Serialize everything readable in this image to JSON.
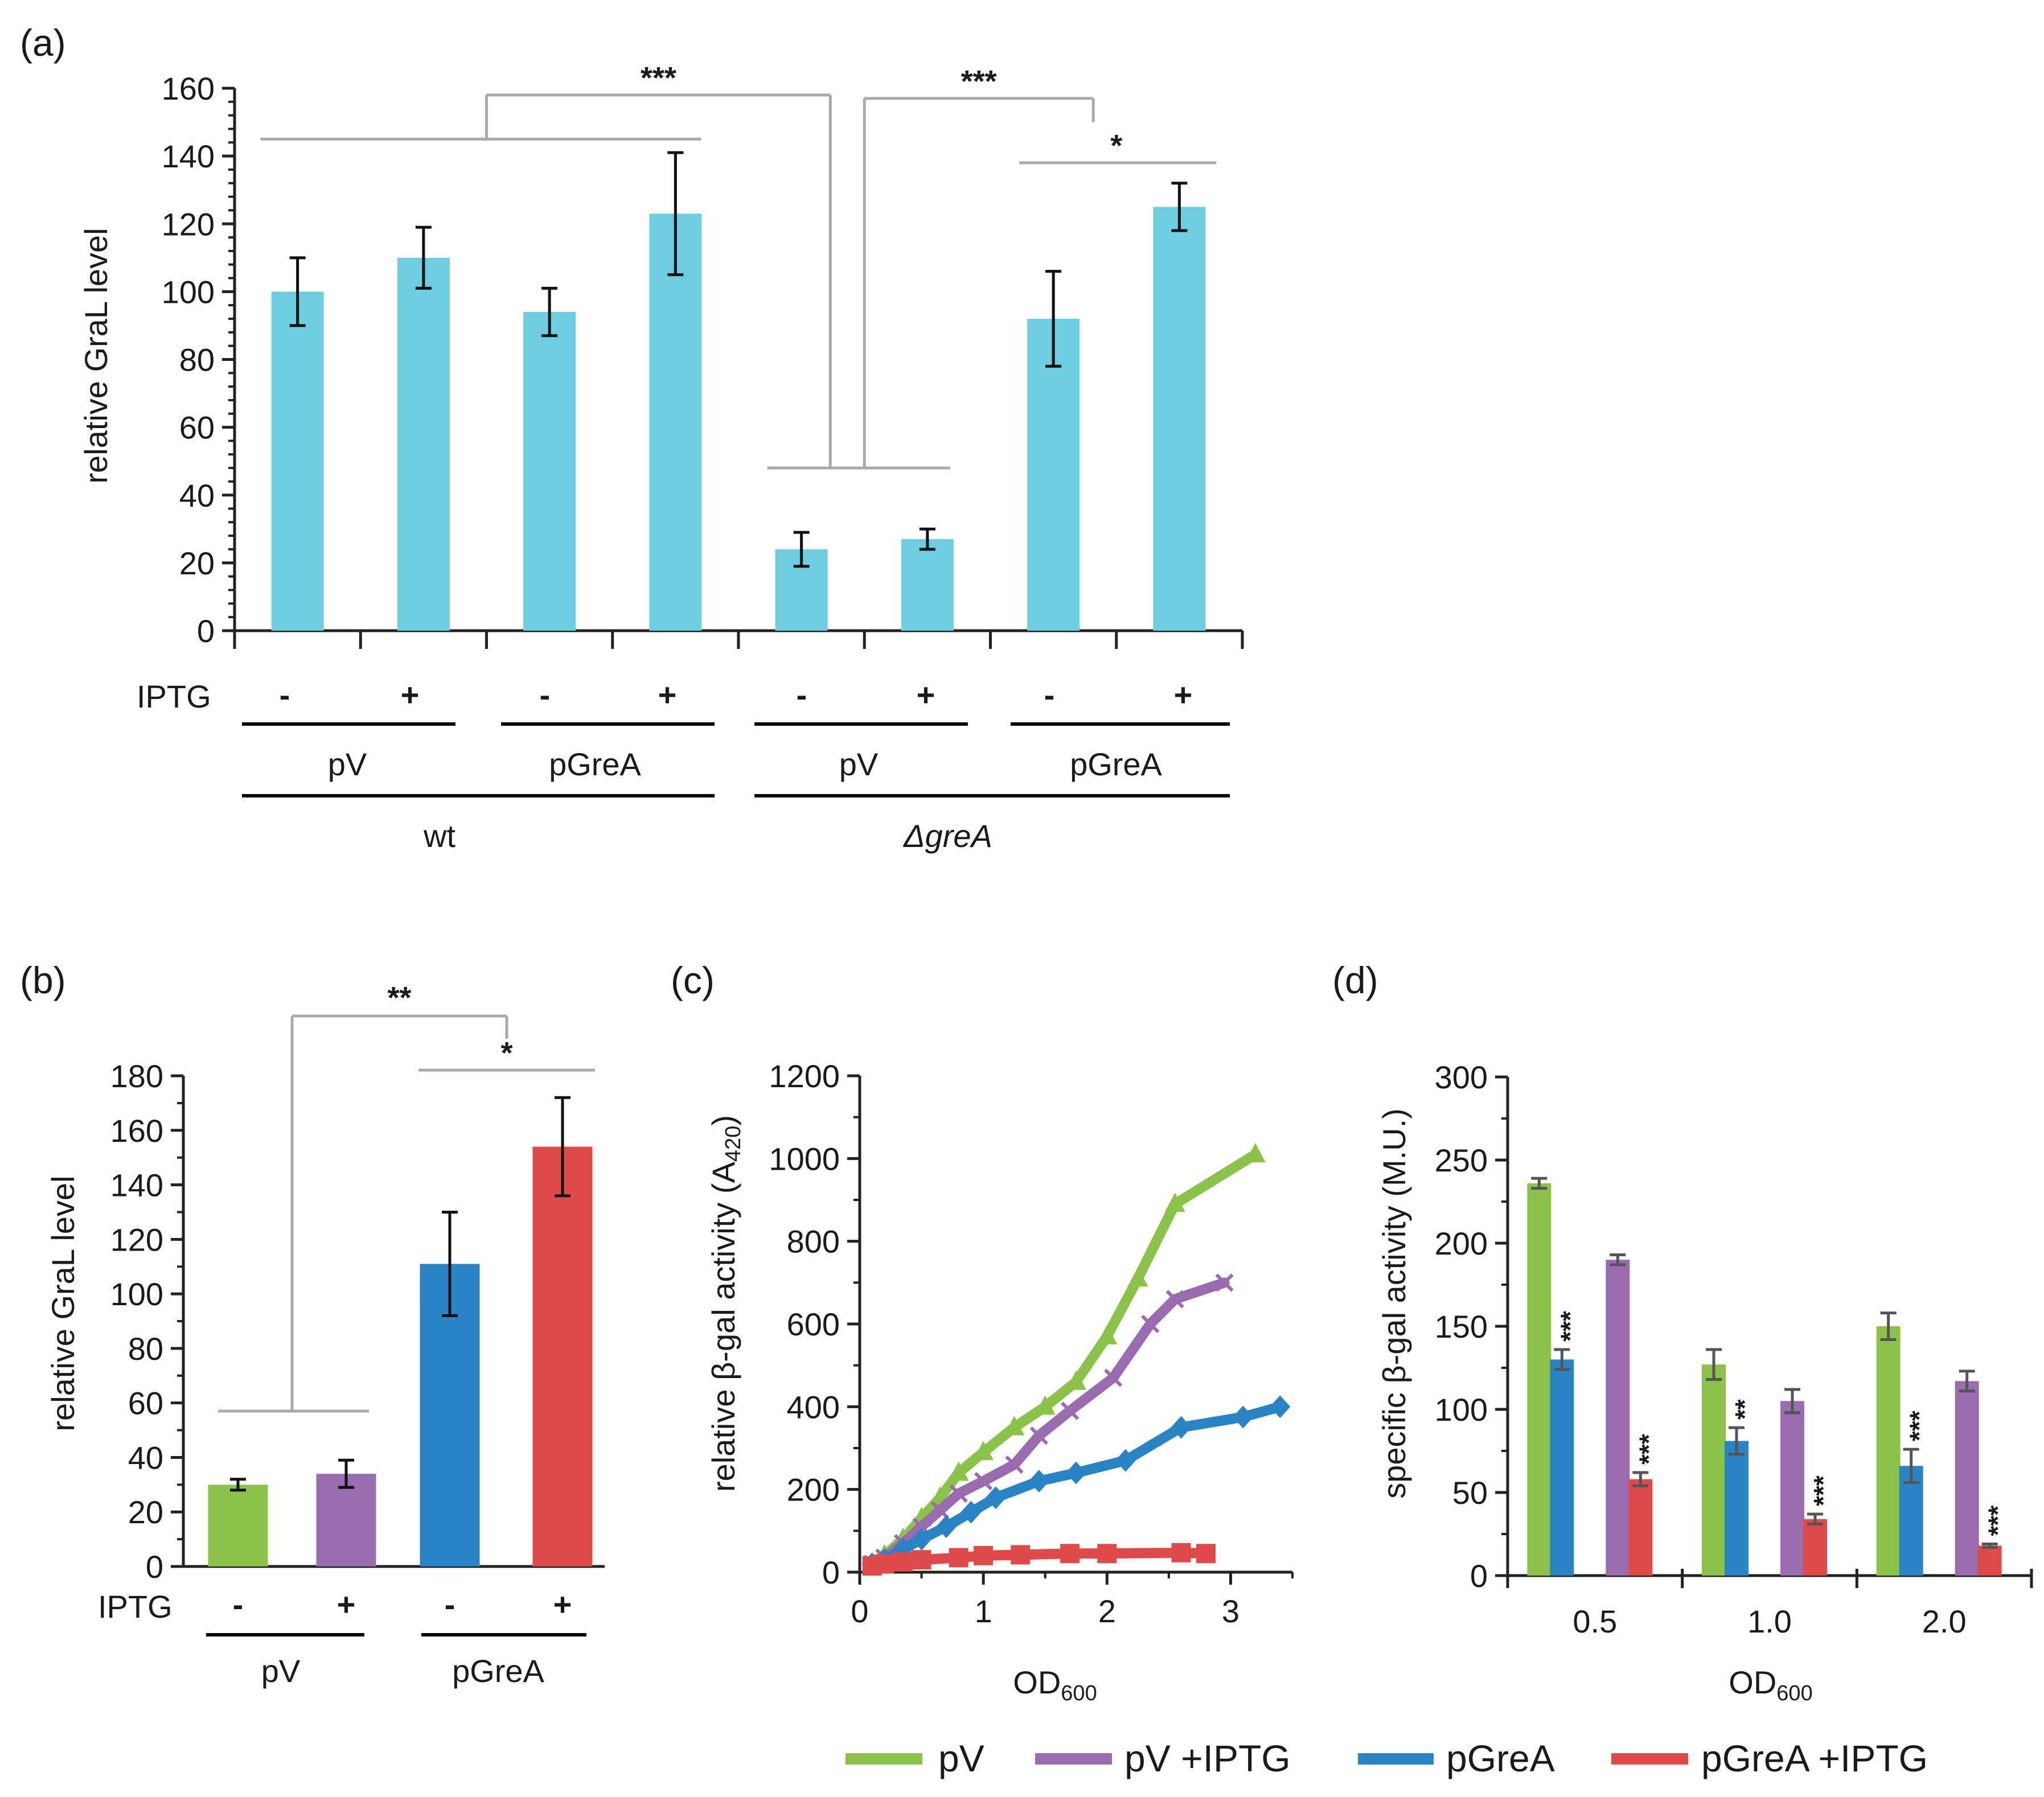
{
  "colors": {
    "cyan": "#6FCDE0",
    "green": "#8BC34A",
    "purple": "#9B6BB0",
    "blue": "#2A84C4",
    "red": "#E04A4A",
    "bracket": "#aaaaaa",
    "axis": "#222222"
  },
  "chart_data": [
    {
      "id": "a",
      "panel_label": "(a)",
      "type": "bar",
      "ylabel": "relative GraL level",
      "ylim": [
        0,
        160
      ],
      "yticks": [
        "0",
        "20",
        "40",
        "60",
        "80",
        "100",
        "120",
        "140",
        "160"
      ],
      "series": [
        {
          "name": "relative GraL level",
          "color": "#6FCDE0",
          "values": [
            100,
            110,
            94,
            123,
            24,
            27,
            92,
            125
          ],
          "errors": [
            10,
            9,
            7,
            18,
            5,
            3,
            14,
            7
          ]
        }
      ],
      "row_label": "IPTG",
      "iptg": [
        "-",
        "+",
        "-",
        "+",
        "-",
        "+",
        "-",
        "+"
      ],
      "plasmids": [
        "pV",
        "pGreA",
        "pV",
        "pGreA"
      ],
      "strains": [
        "wt",
        "ΔgreA"
      ],
      "significance": [
        "***",
        "***",
        "*"
      ]
    },
    {
      "id": "b",
      "panel_label": "(b)",
      "type": "bar",
      "ylabel": "relative GraL level",
      "ylim": [
        0,
        180
      ],
      "yticks": [
        "0",
        "20",
        "40",
        "60",
        "80",
        "100",
        "120",
        "140",
        "160",
        "180"
      ],
      "categories": [
        "pV -IPTG",
        "pV +IPTG",
        "pGreA -IPTG",
        "pGreA +IPTG"
      ],
      "values": [
        30,
        34,
        111,
        154
      ],
      "errors": [
        2,
        5,
        19,
        18
      ],
      "bar_colors": [
        "#8BC34A",
        "#9B6BB0",
        "#2A84C4",
        "#E04A4A"
      ],
      "row_label": "IPTG",
      "iptg": [
        "-",
        "+",
        "-",
        "+"
      ],
      "plasmids": [
        "pV",
        "pGreA"
      ],
      "significance": [
        "**",
        "*"
      ]
    },
    {
      "id": "c",
      "panel_label": "(c)",
      "type": "line",
      "ylabel": "relative β-gal activity (A",
      "ylabel_sub": "420",
      "ylabel_end": ")",
      "xlabel": "OD",
      "xlabel_sub": "600",
      "xlim": [
        0,
        3.5
      ],
      "ylim": [
        0,
        1200
      ],
      "xticks": [
        "0",
        "1",
        "2",
        "3"
      ],
      "yticks": [
        "0",
        "200",
        "400",
        "600",
        "800",
        "1000",
        "1200"
      ],
      "series": [
        {
          "name": "pV",
          "color": "#8BC34A",
          "marker": "triangle",
          "x": [
            0.1,
            0.2,
            0.35,
            0.5,
            0.65,
            0.8,
            1.0,
            1.25,
            1.5,
            1.75,
            2.0,
            2.25,
            2.55,
            3.2
          ],
          "y": [
            20,
            40,
            80,
            130,
            180,
            240,
            290,
            350,
            400,
            460,
            570,
            710,
            890,
            1010
          ]
        },
        {
          "name": "pV +IPTG",
          "color": "#9B6BB0",
          "marker": "x",
          "x": [
            0.1,
            0.2,
            0.35,
            0.5,
            0.65,
            0.8,
            1.0,
            1.25,
            1.45,
            1.7,
            2.05,
            2.35,
            2.55,
            2.95
          ],
          "y": [
            20,
            35,
            70,
            110,
            150,
            190,
            220,
            260,
            330,
            390,
            470,
            600,
            660,
            700
          ]
        },
        {
          "name": "pGreA",
          "color": "#2A84C4",
          "marker": "diamond",
          "x": [
            0.1,
            0.2,
            0.35,
            0.5,
            0.7,
            0.9,
            1.1,
            1.45,
            1.75,
            2.15,
            2.6,
            3.1,
            3.4
          ],
          "y": [
            20,
            30,
            55,
            80,
            110,
            145,
            180,
            220,
            240,
            270,
            350,
            375,
            400
          ]
        },
        {
          "name": "pGreA +IPTG",
          "color": "#E04A4A",
          "marker": "square",
          "x": [
            0.1,
            0.2,
            0.35,
            0.5,
            0.8,
            1.0,
            1.3,
            1.7,
            2.0,
            2.6,
            2.8
          ],
          "y": [
            15,
            20,
            25,
            30,
            35,
            40,
            42,
            45,
            45,
            47,
            45
          ]
        }
      ]
    },
    {
      "id": "d",
      "panel_label": "(d)",
      "type": "bar",
      "ylabel": "specific β-gal activity (M.U.)",
      "xlabel": "OD",
      "xlabel_sub": "600",
      "ylim": [
        0,
        300
      ],
      "yticks": [
        "0",
        "50",
        "100",
        "150",
        "200",
        "250",
        "300"
      ],
      "categories": [
        "0.5",
        "1.0",
        "2.0"
      ],
      "series": [
        {
          "name": "pV",
          "color": "#8BC34A",
          "values": [
            236,
            127,
            150
          ],
          "errors": [
            3,
            9,
            8
          ],
          "stars": [
            "",
            "",
            ""
          ]
        },
        {
          "name": "pGreA",
          "color": "#2A84C4",
          "values": [
            130,
            81,
            66
          ],
          "errors": [
            6,
            8,
            10
          ],
          "stars": [
            "***",
            "**",
            "***"
          ]
        },
        {
          "name": "pV +IPTG",
          "color": "#9B6BB0",
          "values": [
            190,
            105,
            117
          ],
          "errors": [
            3,
            7,
            6
          ],
          "stars": [
            "",
            "",
            ""
          ]
        },
        {
          "name": "pGreA +IPTG",
          "color": "#E04A4A",
          "values": [
            58,
            34,
            18
          ],
          "errors": [
            4,
            3,
            1
          ],
          "stars": [
            "***",
            "***",
            "***"
          ]
        }
      ]
    }
  ],
  "legend": [
    {
      "label": "pV",
      "color": "#8BC34A"
    },
    {
      "label": "pV +IPTG",
      "color": "#9B6BB0"
    },
    {
      "label": "pGreA",
      "color": "#2A84C4"
    },
    {
      "label": "pGreA +IPTG",
      "color": "#E04A4A"
    }
  ]
}
